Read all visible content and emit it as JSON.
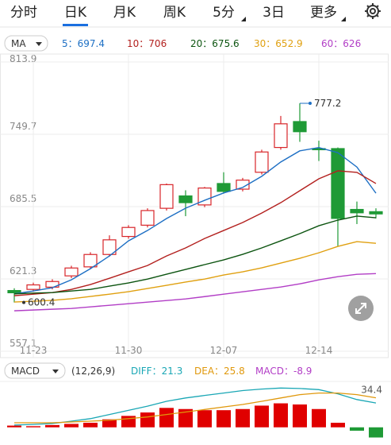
{
  "tabs": [
    "分时",
    "日K",
    "月K",
    "周K",
    "5分",
    "3日",
    "更多"
  ],
  "active_tab": 1,
  "chart_data": [
    {
      "type": "candlestick",
      "indicator": "MA",
      "legend_separator": "：",
      "categories": [
        null,
        "11-23",
        null,
        null,
        null,
        null,
        "11-30",
        null,
        null,
        null,
        null,
        "12-07",
        null,
        null,
        null,
        null,
        "12-14",
        null,
        null,
        null
      ],
      "open": [
        611,
        612,
        614,
        624,
        632,
        643,
        659,
        669,
        684,
        695,
        687,
        706,
        701,
        716,
        738,
        761,
        737,
        737,
        683,
        681
      ],
      "high": [
        613,
        618,
        621,
        633,
        645,
        660,
        669,
        684,
        706,
        700,
        703,
        716,
        711,
        736,
        766,
        777.2,
        744,
        738,
        690,
        684
      ],
      "low": [
        600.4,
        610,
        612,
        622,
        630,
        641,
        657,
        667,
        682,
        677,
        685,
        697,
        699,
        714,
        736,
        743,
        726,
        650,
        670,
        675
      ],
      "close": [
        609,
        616,
        619,
        631,
        643,
        656,
        667,
        682,
        705,
        689,
        702,
        699,
        709,
        734,
        759,
        752,
        736,
        675,
        680,
        679
      ],
      "up_color": "#d8262a",
      "down_color": "#1f9a36",
      "series": [
        {
          "name": "5",
          "color": "#1d6fc4",
          "values": [
            608,
            610.6,
            613.5,
            620.5,
            630.4,
            641.7,
            655.1,
            664.3,
            674.9,
            684.1,
            691.1,
            697.6,
            702.5,
            712.4,
            725.1,
            735,
            737.9,
            733.4,
            720.6,
            697.4
          ]
        },
        {
          "name": "10",
          "color": "#b3201e",
          "values": [
            606.4,
            607.8,
            609.2,
            612,
            616.3,
            621.9,
            627.6,
            633.2,
            641.7,
            648.8,
            657.2,
            664.3,
            671.4,
            679.8,
            689,
            699.6,
            710.2,
            717.3,
            715.9,
            706.0
          ]
        },
        {
          "name": "20",
          "color": "#0c5410",
          "values": [
            608,
            608.7,
            609.2,
            610.6,
            612,
            614.9,
            617.7,
            621.2,
            625.5,
            629.7,
            634,
            638.2,
            643.1,
            648.8,
            655.1,
            661.5,
            668.5,
            673.5,
            677.1,
            675.6
          ]
        },
        {
          "name": "30",
          "color": "#e0a010",
          "values": [
            600.8,
            601.5,
            602.3,
            603.7,
            605.7,
            607.8,
            610,
            612.8,
            615.6,
            618.5,
            621.2,
            624.8,
            627.6,
            631.1,
            635.4,
            639.6,
            644.5,
            650.2,
            654.4,
            652.9
          ]
        },
        {
          "name": "60",
          "color": "#b23ec6",
          "values": [
            593,
            593.7,
            594.4,
            595.1,
            596.5,
            597.9,
            599.3,
            600.7,
            602.1,
            603.5,
            605.6,
            607.8,
            609.9,
            612,
            614.1,
            616.9,
            620.5,
            623.3,
            625.4,
            626.0
          ]
        }
      ],
      "ylim": [
        557.1,
        813.9
      ],
      "yticks": [
        557.1,
        621.3,
        685.5,
        749.7,
        813.9
      ],
      "grid": true
    },
    {
      "type": "macd",
      "title": "MACD",
      "params": "(12,26,9)",
      "legend_separator": "：",
      "up_color": "#e00000",
      "down_color": "#1f9a36",
      "series": [
        {
          "name": "DIFF",
          "color": "#1aa7b5",
          "values": [
            2,
            2.5,
            3.3,
            5.4,
            7.6,
            11.2,
            14.9,
            18.5,
            22.8,
            25.7,
            27.9,
            30,
            32.2,
            33.5,
            34.4,
            34,
            33,
            29.3,
            24.3,
            21.3
          ]
        },
        {
          "name": "DEA",
          "color": "#e0980c",
          "values": [
            4,
            4,
            4,
            4.7,
            5.4,
            6.2,
            7.6,
            9.1,
            11.2,
            13.4,
            15.6,
            17.8,
            20,
            22.8,
            25.7,
            28.6,
            30,
            30,
            28.6,
            25.8
          ]
        },
        {
          "name": "MACD",
          "color": "#b23ec6",
          "values": [
            1.5,
            1,
            2,
            3,
            4,
            7,
            10,
            13,
            17,
            16,
            15,
            15,
            16,
            19,
            21,
            20,
            16,
            4,
            -3,
            -8.9
          ]
        }
      ],
      "ylim": [
        -12,
        36
      ],
      "yticks": [
        34.4
      ]
    }
  ]
}
